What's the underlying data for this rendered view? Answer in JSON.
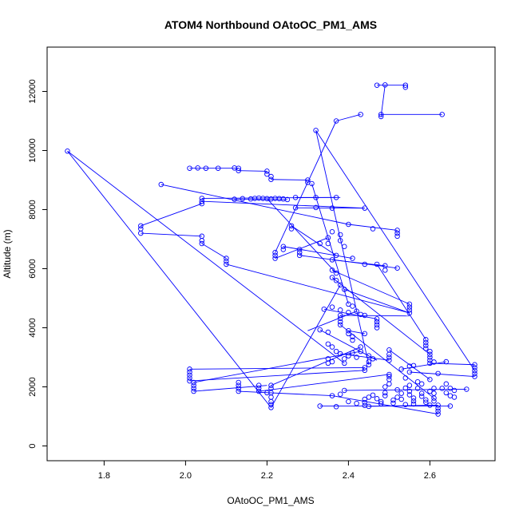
{
  "chart_data": {
    "type": "scatter",
    "title": "ATOM4 Northbound OAtoOC_PM1_AMS",
    "xlabel": "OAtoOC_PM1_AMS",
    "ylabel": "Altitude (m)",
    "xlim": [
      1.66,
      2.76
    ],
    "ylim": [
      -500,
      13500
    ],
    "xticks": [
      1.8,
      2.0,
      2.2,
      2.4,
      2.6
    ],
    "xtick_labels": [
      "1.8",
      "2.0",
      "2.2",
      "2.4",
      "2.6"
    ],
    "yticks": [
      0,
      2000,
      4000,
      6000,
      8000,
      10000,
      12000
    ],
    "ytick_labels": [
      "0",
      "2000",
      "4000",
      "6000",
      "8000",
      "10000",
      "12000"
    ],
    "series_color": "#0000ff",
    "marker": "open-circle",
    "connected": true,
    "points": [
      [
        1.71,
        9980
      ],
      [
        2.21,
        1300
      ],
      [
        2.21,
        1400
      ],
      [
        2.21,
        1500
      ],
      [
        2.21,
        1650
      ],
      [
        2.21,
        1800
      ],
      [
        2.21,
        1950
      ],
      [
        2.21,
        2050
      ],
      [
        2.39,
        2800
      ],
      [
        2.39,
        2950
      ],
      [
        2.4,
        3050
      ],
      [
        2.43,
        3200
      ],
      [
        2.43,
        3350
      ],
      [
        2.01,
        9400
      ],
      [
        2.03,
        9410
      ],
      [
        2.05,
        9400
      ],
      [
        2.08,
        9400
      ],
      [
        2.12,
        9410
      ],
      [
        2.13,
        9400
      ],
      [
        2.13,
        9320
      ],
      [
        2.2,
        9300
      ],
      [
        2.2,
        9200
      ],
      [
        2.21,
        9120
      ],
      [
        2.21,
        9020
      ],
      [
        2.3,
        9000
      ],
      [
        2.3,
        8920
      ],
      [
        2.31,
        8880
      ],
      [
        2.32,
        10680
      ],
      [
        2.71,
        2550
      ],
      [
        2.71,
        2650
      ],
      [
        2.71,
        2750
      ],
      [
        2.37,
        11000
      ],
      [
        2.43,
        11220
      ],
      [
        2.48,
        11220
      ],
      [
        2.48,
        11150
      ],
      [
        2.63,
        11220
      ],
      [
        2.47,
        12210
      ],
      [
        2.49,
        12220
      ],
      [
        2.54,
        12210
      ],
      [
        2.54,
        12140
      ],
      [
        1.94,
        8850
      ],
      [
        2.4,
        7500
      ],
      [
        2.46,
        7350
      ],
      [
        2.52,
        7300
      ],
      [
        2.52,
        7200
      ],
      [
        2.52,
        7100
      ],
      [
        2.04,
        8380
      ],
      [
        2.04,
        8280
      ],
      [
        2.04,
        8200
      ],
      [
        2.12,
        8350
      ],
      [
        2.14,
        8370
      ],
      [
        2.16,
        8360
      ],
      [
        2.17,
        8380
      ],
      [
        2.18,
        8390
      ],
      [
        2.19,
        8380
      ],
      [
        2.2,
        8370
      ],
      [
        2.21,
        8360
      ],
      [
        2.22,
        8380
      ],
      [
        2.23,
        8370
      ],
      [
        2.24,
        8360
      ],
      [
        2.25,
        8340
      ],
      [
        2.27,
        8410
      ],
      [
        2.32,
        8410
      ],
      [
        2.37,
        8410
      ],
      [
        2.27,
        8060
      ],
      [
        2.32,
        8070
      ],
      [
        2.36,
        8050
      ],
      [
        2.44,
        8050
      ],
      [
        1.89,
        7450
      ],
      [
        1.89,
        7350
      ],
      [
        1.89,
        7200
      ],
      [
        2.04,
        7100
      ],
      [
        2.04,
        6950
      ],
      [
        2.04,
        6850
      ],
      [
        2.1,
        6350
      ],
      [
        2.1,
        6250
      ],
      [
        2.1,
        6150
      ],
      [
        2.22,
        6550
      ],
      [
        2.22,
        6450
      ],
      [
        2.22,
        6350
      ],
      [
        2.24,
        6750
      ],
      [
        2.24,
        6650
      ],
      [
        2.26,
        7450
      ],
      [
        2.26,
        7350
      ],
      [
        2.28,
        6650
      ],
      [
        2.28,
        6550
      ],
      [
        2.28,
        6450
      ],
      [
        2.33,
        6850
      ],
      [
        2.35,
        7050
      ],
      [
        2.35,
        6850
      ],
      [
        2.36,
        7250
      ],
      [
        2.38,
        7150
      ],
      [
        2.38,
        6950
      ],
      [
        2.39,
        6750
      ],
      [
        2.37,
        6450
      ],
      [
        2.36,
        6300
      ],
      [
        2.41,
        6350
      ],
      [
        2.44,
        6150
      ],
      [
        2.47,
        6150
      ],
      [
        2.49,
        6100
      ],
      [
        2.49,
        5950
      ],
      [
        2.52,
        6020
      ],
      [
        2.36,
        5950
      ],
      [
        2.37,
        5850
      ],
      [
        2.36,
        5700
      ],
      [
        2.37,
        5600
      ],
      [
        2.38,
        5450
      ],
      [
        2.39,
        5300
      ],
      [
        2.55,
        4800
      ],
      [
        2.55,
        4700
      ],
      [
        2.55,
        4600
      ],
      [
        2.55,
        4500
      ],
      [
        2.34,
        4630
      ],
      [
        2.36,
        4700
      ],
      [
        2.38,
        4600
      ],
      [
        2.4,
        4520
      ],
      [
        2.42,
        4560
      ],
      [
        2.43,
        4450
      ],
      [
        2.4,
        4800
      ],
      [
        2.41,
        4730
      ],
      [
        2.38,
        4420
      ],
      [
        2.38,
        4320
      ],
      [
        2.38,
        4200
      ],
      [
        2.38,
        4100
      ],
      [
        2.44,
        4420
      ],
      [
        2.47,
        4300
      ],
      [
        2.47,
        4200
      ],
      [
        2.47,
        4100
      ],
      [
        2.47,
        4000
      ],
      [
        2.4,
        3900
      ],
      [
        2.4,
        3800
      ],
      [
        2.41,
        3700
      ],
      [
        2.41,
        3580
      ],
      [
        2.33,
        3930
      ],
      [
        2.35,
        3850
      ],
      [
        2.44,
        3800
      ],
      [
        2.35,
        3450
      ],
      [
        2.36,
        3350
      ],
      [
        2.37,
        3200
      ],
      [
        2.38,
        3120
      ],
      [
        2.41,
        3150
      ],
      [
        2.42,
        3000
      ],
      [
        2.45,
        3050
      ],
      [
        2.46,
        2950
      ],
      [
        2.45,
        2850
      ],
      [
        2.45,
        2750
      ],
      [
        2.44,
        2650
      ],
      [
        2.44,
        2560
      ],
      [
        2.35,
        2950
      ],
      [
        2.36,
        2850
      ],
      [
        2.35,
        2800
      ],
      [
        2.5,
        3250
      ],
      [
        2.5,
        3100
      ],
      [
        2.5,
        3000
      ],
      [
        2.5,
        2900
      ],
      [
        2.53,
        2600
      ],
      [
        2.55,
        2700
      ],
      [
        2.56,
        2720
      ],
      [
        2.6,
        2800
      ],
      [
        2.61,
        2840
      ],
      [
        2.59,
        3600
      ],
      [
        2.59,
        3500
      ],
      [
        2.59,
        3400
      ],
      [
        2.59,
        3300
      ],
      [
        2.6,
        3200
      ],
      [
        2.6,
        3100
      ],
      [
        2.6,
        3000
      ],
      [
        2.6,
        2900
      ],
      [
        2.55,
        2500
      ],
      [
        2.62,
        2450
      ],
      [
        2.64,
        2850
      ],
      [
        2.01,
        2600
      ],
      [
        2.01,
        2500
      ],
      [
        2.01,
        2400
      ],
      [
        2.01,
        2300
      ],
      [
        2.01,
        2200
      ],
      [
        2.02,
        2150
      ],
      [
        2.02,
        2050
      ],
      [
        2.02,
        1950
      ],
      [
        2.02,
        1850
      ],
      [
        2.13,
        2150
      ],
      [
        2.13,
        2050
      ],
      [
        2.13,
        1950
      ],
      [
        2.13,
        1850
      ],
      [
        2.18,
        2050
      ],
      [
        2.18,
        1950
      ],
      [
        2.18,
        1850
      ],
      [
        2.2,
        1800
      ],
      [
        2.36,
        1700
      ],
      [
        2.38,
        1750
      ],
      [
        2.39,
        1880
      ],
      [
        2.4,
        1500
      ],
      [
        2.42,
        1440
      ],
      [
        2.44,
        1580
      ],
      [
        2.44,
        1470
      ],
      [
        2.44,
        1370
      ],
      [
        2.45,
        1650
      ],
      [
        2.46,
        1720
      ],
      [
        2.47,
        1600
      ],
      [
        2.48,
        1500
      ],
      [
        2.48,
        1430
      ],
      [
        2.49,
        1700
      ],
      [
        2.49,
        1800
      ],
      [
        2.49,
        2000
      ],
      [
        2.5,
        2100
      ],
      [
        2.5,
        2250
      ],
      [
        2.5,
        2350
      ],
      [
        2.5,
        2420
      ],
      [
        2.51,
        1550
      ],
      [
        2.51,
        1450
      ],
      [
        2.52,
        1900
      ],
      [
        2.52,
        1650
      ],
      [
        2.53,
        1780
      ],
      [
        2.53,
        1580
      ],
      [
        2.54,
        1960
      ],
      [
        2.54,
        2300
      ],
      [
        2.55,
        2050
      ],
      [
        2.55,
        1850
      ],
      [
        2.55,
        1730
      ],
      [
        2.56,
        1620
      ],
      [
        2.56,
        1520
      ],
      [
        2.56,
        1420
      ],
      [
        2.57,
        2170
      ],
      [
        2.57,
        1950
      ],
      [
        2.58,
        2100
      ],
      [
        2.58,
        1780
      ],
      [
        2.58,
        1680
      ],
      [
        2.59,
        1560
      ],
      [
        2.59,
        1480
      ],
      [
        2.6,
        1850
      ],
      [
        2.6,
        2250
      ],
      [
        2.61,
        1950
      ],
      [
        2.61,
        1780
      ],
      [
        2.61,
        1620
      ],
      [
        2.61,
        1520
      ],
      [
        2.62,
        1380
      ],
      [
        2.62,
        1280
      ],
      [
        2.62,
        1180
      ],
      [
        2.62,
        1080
      ],
      [
        2.63,
        1950
      ],
      [
        2.64,
        2100
      ],
      [
        2.64,
        1800
      ],
      [
        2.65,
        1700
      ],
      [
        2.65,
        1950
      ],
      [
        2.66,
        1880
      ],
      [
        2.66,
        1650
      ],
      [
        2.69,
        1920
      ],
      [
        2.71,
        2350
      ],
      [
        2.71,
        2450
      ],
      [
        2.33,
        1350
      ],
      [
        2.37,
        1330
      ],
      [
        2.45,
        1340
      ],
      [
        2.54,
        1400
      ],
      [
        2.6,
        1380
      ],
      [
        2.65,
        1350
      ]
    ],
    "segments": [
      [
        [
          1.71,
          9980
        ],
        [
          2.21,
          1300
        ]
      ],
      [
        [
          1.71,
          9980
        ],
        [
          2.39,
          2800
        ]
      ],
      [
        [
          2.21,
          2050
        ],
        [
          2.43,
          3350
        ]
      ],
      [
        [
          2.01,
          9400
        ],
        [
          2.13,
          9400
        ]
      ],
      [
        [
          2.13,
          9320
        ],
        [
          2.2,
          9300
        ]
      ],
      [
        [
          2.21,
          9020
        ],
        [
          2.3,
          9000
        ]
      ],
      [
        [
          2.31,
          8880
        ],
        [
          2.4,
          4800
        ]
      ],
      [
        [
          2.32,
          10680
        ],
        [
          2.71,
          2550
        ]
      ],
      [
        [
          2.32,
          10680
        ],
        [
          2.45,
          2750
        ]
      ],
      [
        [
          2.37,
          11000
        ],
        [
          2.43,
          11220
        ]
      ],
      [
        [
          2.48,
          11220
        ],
        [
          2.63,
          11220
        ]
      ],
      [
        [
          2.47,
          12210
        ],
        [
          2.54,
          12210
        ]
      ],
      [
        [
          2.49,
          12220
        ],
        [
          2.48,
          11150
        ]
      ],
      [
        [
          2.37,
          11000
        ],
        [
          2.22,
          6550
        ]
      ],
      [
        [
          1.94,
          8850
        ],
        [
          2.4,
          7500
        ]
      ],
      [
        [
          2.4,
          7500
        ],
        [
          2.52,
          7300
        ]
      ],
      [
        [
          2.04,
          8380
        ],
        [
          2.37,
          8410
        ]
      ],
      [
        [
          2.12,
          8350
        ],
        [
          2.25,
          8340
        ]
      ],
      [
        [
          2.27,
          8410
        ],
        [
          2.38,
          8410
        ]
      ],
      [
        [
          2.27,
          8060
        ],
        [
          2.44,
          8050
        ]
      ],
      [
        [
          2.04,
          8200
        ],
        [
          1.89,
          7450
        ]
      ],
      [
        [
          1.89,
          7200
        ],
        [
          2.04,
          7100
        ]
      ],
      [
        [
          2.04,
          6850
        ],
        [
          2.1,
          6350
        ]
      ],
      [
        [
          2.1,
          6150
        ],
        [
          2.55,
          4500
        ]
      ],
      [
        [
          2.22,
          6350
        ],
        [
          2.35,
          7050
        ]
      ],
      [
        [
          2.28,
          6450
        ],
        [
          2.52,
          6020
        ]
      ],
      [
        [
          2.36,
          6300
        ],
        [
          2.49,
          6100
        ]
      ],
      [
        [
          2.36,
          5950
        ],
        [
          2.55,
          4800
        ]
      ],
      [
        [
          2.36,
          5700
        ],
        [
          2.6,
          3100
        ]
      ],
      [
        [
          2.39,
          5300
        ],
        [
          2.55,
          4500
        ]
      ],
      [
        [
          2.34,
          4630
        ],
        [
          2.47,
          4300
        ]
      ],
      [
        [
          2.38,
          4420
        ],
        [
          2.55,
          4400
        ]
      ],
      [
        [
          2.4,
          3900
        ],
        [
          2.44,
          3800
        ]
      ],
      [
        [
          2.38,
          3120
        ],
        [
          2.5,
          2900
        ]
      ],
      [
        [
          2.44,
          2560
        ],
        [
          2.01,
          2200
        ]
      ],
      [
        [
          2.02,
          1850
        ],
        [
          2.2,
          2050
        ]
      ],
      [
        [
          2.01,
          2600
        ],
        [
          2.44,
          2650
        ]
      ],
      [
        [
          2.13,
          1850
        ],
        [
          2.36,
          1700
        ]
      ],
      [
        [
          2.18,
          1850
        ],
        [
          2.5,
          2420
        ]
      ],
      [
        [
          2.44,
          8050
        ],
        [
          2.04,
          8280
        ]
      ],
      [
        [
          2.2,
          8370
        ],
        [
          2.37,
          5850
        ]
      ],
      [
        [
          2.26,
          7450
        ],
        [
          2.37,
          6450
        ]
      ],
      [
        [
          2.47,
          6150
        ],
        [
          2.59,
          3600
        ]
      ],
      [
        [
          2.6,
          2800
        ],
        [
          2.71,
          2750
        ]
      ],
      [
        [
          2.64,
          2850
        ],
        [
          2.53,
          2600
        ]
      ],
      [
        [
          2.55,
          2500
        ],
        [
          2.71,
          2350
        ]
      ],
      [
        [
          2.33,
          1350
        ],
        [
          2.65,
          1350
        ]
      ],
      [
        [
          2.36,
          1700
        ],
        [
          2.62,
          1080
        ]
      ],
      [
        [
          2.39,
          1880
        ],
        [
          2.69,
          1920
        ]
      ],
      [
        [
          2.45,
          1340
        ],
        [
          2.62,
          1380
        ]
      ],
      [
        [
          2.21,
          1300
        ],
        [
          2.38,
          5450
        ]
      ],
      [
        [
          2.24,
          6750
        ],
        [
          2.41,
          6350
        ]
      ],
      [
        [
          2.42,
          4560
        ],
        [
          2.3,
          3900
        ]
      ],
      [
        [
          2.5,
          3250
        ],
        [
          2.6,
          2250
        ]
      ],
      [
        [
          2.02,
          2150
        ],
        [
          2.43,
          3200
        ]
      ],
      [
        [
          2.38,
          4100
        ],
        [
          2.61,
          1620
        ]
      ],
      [
        [
          2.33,
          3930
        ],
        [
          2.47,
          2900
        ]
      ]
    ]
  }
}
